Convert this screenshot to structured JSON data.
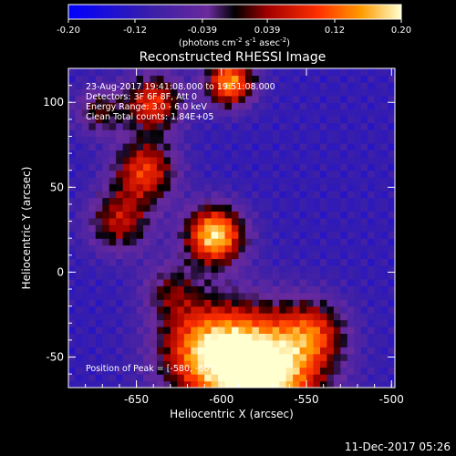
{
  "chart_data": {
    "type": "heatmap",
    "title": "Reconstructed RHESSI Image",
    "xlabel": "Heliocentric X (arcsec)",
    "ylabel": "Heliocentric Y (arcsec)",
    "xlim": [
      -690,
      -498
    ],
    "ylim": [
      -68,
      120
    ],
    "x_ticks": [
      -650,
      -600,
      -550,
      -500
    ],
    "x_tick_labels": [
      "-650",
      "-600",
      "-550",
      "-500"
    ],
    "y_ticks": [
      -50,
      0,
      50,
      100
    ],
    "y_tick_labels": [
      "-50",
      "0",
      "50",
      "100"
    ],
    "colorbar": {
      "min": -0.2,
      "max": 0.2,
      "ticks": [
        -0.2,
        -0.12,
        -0.039,
        0.039,
        0.12,
        0.2
      ],
      "tick_labels": [
        "-0.20",
        "-0.12",
        "-0.039",
        "0.039",
        "0.12",
        "0.20"
      ],
      "label_main": "(photons cm",
      "label_exp1": "-2",
      "label_mid1": " s",
      "label_exp2": "-1",
      "label_mid2": " asec",
      "label_exp3": "-2",
      "label_end": ")"
    },
    "annotations": [
      "23-Aug-2017 19:41:08.000 to 19:51:08.000",
      "Detectors: 3F 6F 8F, Att 0",
      "Energy Range: 3.0 - 6.0 keV",
      "Clean     Total counts: 1.84E+05"
    ],
    "peak_label": "Position of Peak = [-580, -60]",
    "sources": [
      {
        "x": -575,
        "y": -58,
        "sigma": 24,
        "amp": 0.34
      },
      {
        "x": -610,
        "y": -45,
        "sigma": 20,
        "amp": 0.22
      },
      {
        "x": -545,
        "y": -35,
        "sigma": 13,
        "amp": 0.14
      },
      {
        "x": -604,
        "y": 22,
        "sigma": 12,
        "amp": 0.3
      },
      {
        "x": -645,
        "y": 60,
        "sigma": 13,
        "amp": 0.2
      },
      {
        "x": -660,
        "y": 30,
        "sigma": 13,
        "amp": 0.16
      },
      {
        "x": -640,
        "y": 100,
        "sigma": 12,
        "amp": 0.2
      },
      {
        "x": -595,
        "y": 112,
        "sigma": 10,
        "amp": 0.26
      },
      {
        "x": -630,
        "y": -10,
        "sigma": 12,
        "amp": 0.1
      },
      {
        "x": -672,
        "y": 95,
        "sigma": 10,
        "amp": 0.12
      }
    ],
    "background": -0.11
  },
  "footer": {
    "timestamp": "11-Dec-2017 05:26"
  }
}
